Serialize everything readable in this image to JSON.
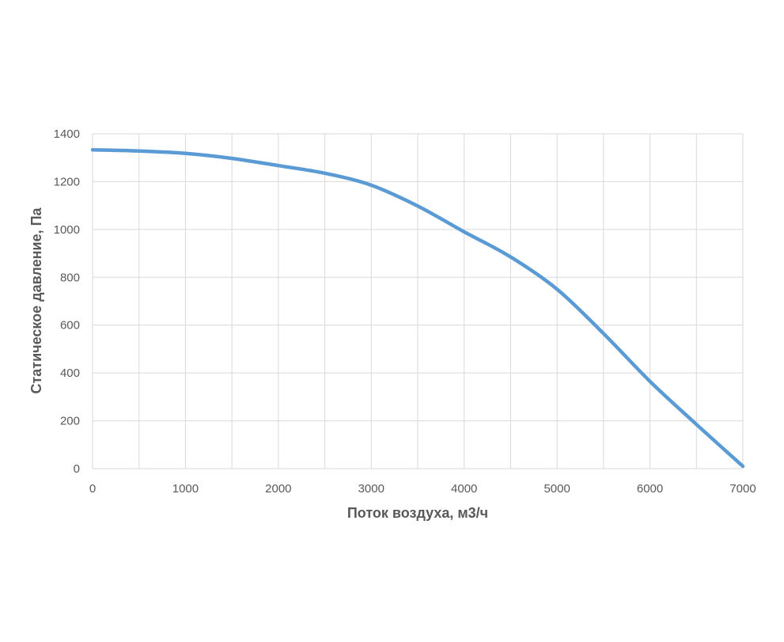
{
  "colors": {
    "series": "#5b9bd5",
    "grid": "#d9d9d9",
    "text": "#595959"
  },
  "chart_data": {
    "type": "line",
    "title": "",
    "xlabel": "Поток воздуха, м3/ч",
    "ylabel": "Статическое давление, Па",
    "xlim": [
      0,
      7000
    ],
    "ylim": [
      0,
      1400
    ],
    "x_ticks": [
      0,
      1000,
      2000,
      3000,
      4000,
      5000,
      6000,
      7000
    ],
    "y_ticks": [
      0,
      200,
      400,
      600,
      800,
      1000,
      1200,
      1400
    ],
    "x_tick_labels": [
      "0",
      "1000",
      "2000",
      "3000",
      "4000",
      "5000",
      "6000",
      "7000"
    ],
    "y_tick_labels": [
      "0",
      "200",
      "400",
      "600",
      "800",
      "1000",
      "1200",
      "1400"
    ],
    "grid": true,
    "legend": "none",
    "series": [
      {
        "x": [
          0,
          500,
          1000,
          1500,
          2000,
          2500,
          3000,
          3500,
          4000,
          4500,
          5000,
          5500,
          6000,
          6500,
          7000
        ],
        "values": [
          1333,
          1328,
          1318,
          1297,
          1267,
          1235,
          1185,
          1098,
          990,
          885,
          750,
          565,
          365,
          185,
          10
        ]
      }
    ]
  }
}
